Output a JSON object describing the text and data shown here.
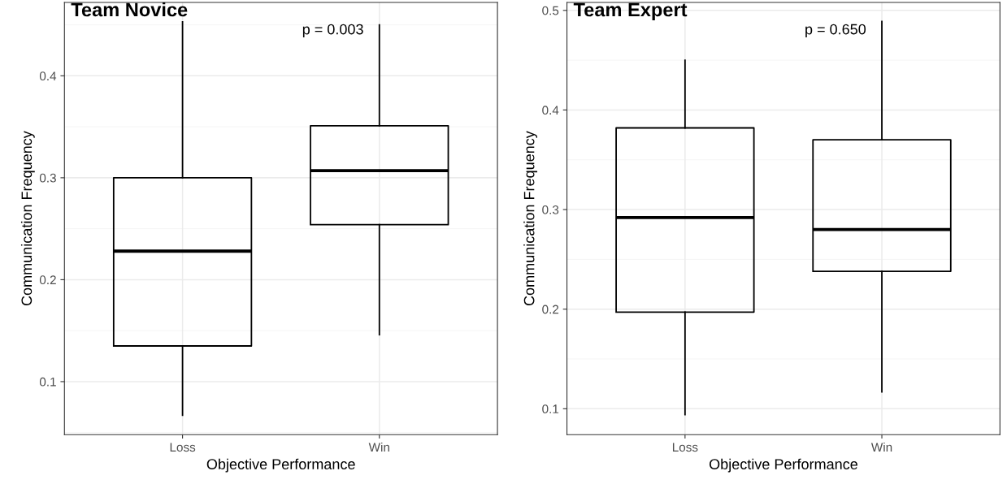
{
  "chart_data": [
    {
      "type": "box",
      "title": "Team Novice",
      "xlabel": "Objective Performance",
      "ylabel": "Communication Frequency",
      "categories": [
        "Loss",
        "Win"
      ],
      "boxes": [
        {
          "low": 0.067,
          "q1": 0.135,
          "median": 0.228,
          "q3": 0.3,
          "high": 0.453
        },
        {
          "low": 0.146,
          "q1": 0.254,
          "median": 0.307,
          "q3": 0.351,
          "high": 0.45
        }
      ],
      "ylim": [
        0.048,
        0.472
      ],
      "yticks": [
        0.1,
        0.2,
        0.3,
        0.4
      ],
      "grid": true,
      "annotations": [
        "p = 0.003"
      ]
    },
    {
      "type": "box",
      "title": "Team Expert",
      "xlabel": "Objective Performance",
      "ylabel": "Communication Frequency",
      "categories": [
        "Loss",
        "Win"
      ],
      "boxes": [
        {
          "low": 0.094,
          "q1": 0.197,
          "median": 0.292,
          "q3": 0.382,
          "high": 0.45
        },
        {
          "low": 0.117,
          "q1": 0.238,
          "median": 0.28,
          "q3": 0.37,
          "high": 0.489
        }
      ],
      "ylim": [
        0.074,
        0.508
      ],
      "yticks": [
        0.1,
        0.2,
        0.3,
        0.4,
        0.5
      ],
      "grid": true,
      "annotations": [
        "p = 0.650"
      ]
    }
  ]
}
